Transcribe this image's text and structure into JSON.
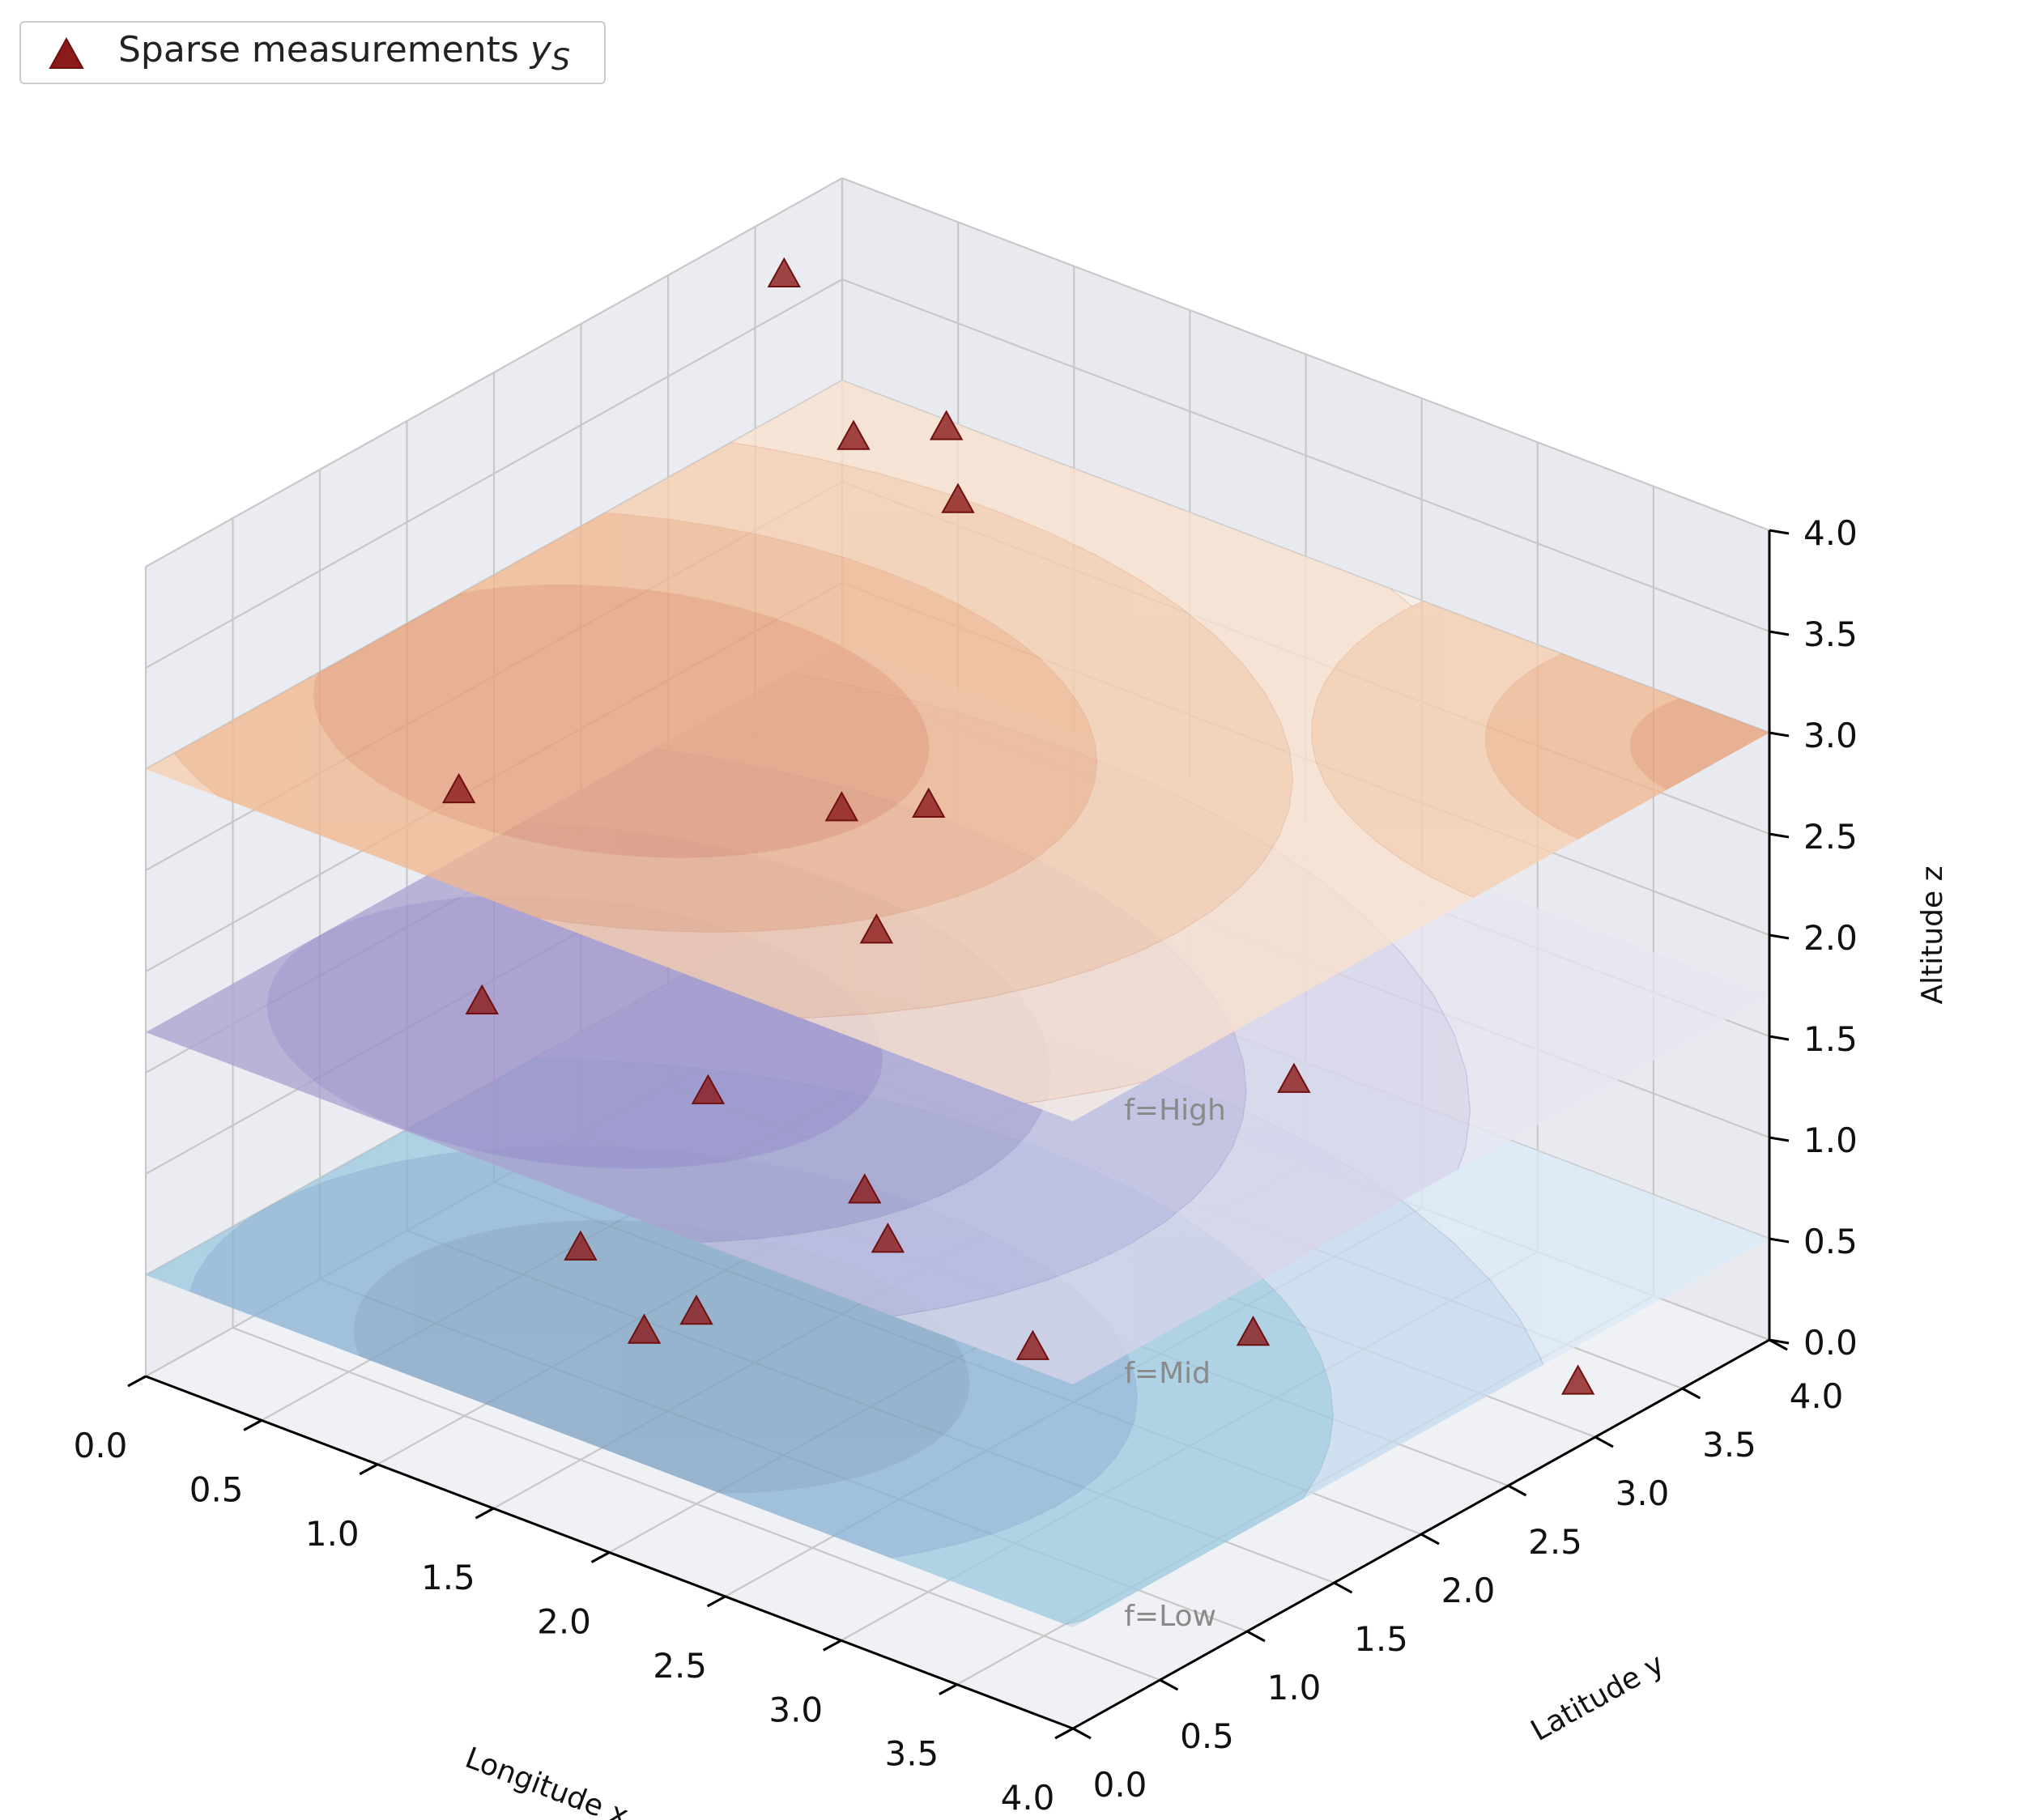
{
  "chart_data": {
    "type": "scatter",
    "projection": "3d",
    "legend": {
      "placement": "top-left",
      "entries": [
        {
          "label": "Sparse measurements",
          "symbol": "y",
          "subscript": "S",
          "marker": "triangle",
          "color": "#8b1a1a"
        }
      ]
    },
    "axes": {
      "x": {
        "label": "Longitude x",
        "range": [
          0,
          4
        ],
        "ticks": [
          "0.0",
          "0.5",
          "1.0",
          "1.5",
          "2.0",
          "2.5",
          "3.0",
          "3.5",
          "4.0"
        ]
      },
      "y": {
        "label": "Latitude y",
        "range": [
          0,
          4
        ],
        "ticks": [
          "0.0",
          "0.5",
          "1.0",
          "1.5",
          "2.0",
          "2.5",
          "3.0",
          "3.5",
          "4.0"
        ]
      },
      "z": {
        "label": "Altitude z",
        "range": [
          0,
          4
        ],
        "ticks": [
          "0.0",
          "0.5",
          "1.0",
          "1.5",
          "2.0",
          "2.5",
          "3.0",
          "3.5",
          "4.0"
        ]
      }
    },
    "grid": true,
    "surfaces": [
      {
        "name": "f=Low",
        "z": 0.5,
        "colormap": "blues",
        "colors": [
          "#dbe9f6",
          "#c6dbef",
          "#9ecae1",
          "#8ab3d4",
          "#7fa3c4"
        ]
      },
      {
        "name": "f=Mid",
        "z": 1.7,
        "colormap": "purples",
        "colors": [
          "#e7e6f1",
          "#d8d5ea",
          "#c2bde0",
          "#aba3d1",
          "#9b8fc9"
        ]
      },
      {
        "name": "f=High",
        "z": 3.0,
        "colormap": "oranges",
        "colors": [
          "#faf0e6",
          "#f9e2cf",
          "#f6cfaf",
          "#f1b890",
          "#e8a07a"
        ]
      }
    ],
    "points": [
      {
        "x": 0.2,
        "y": 3.4,
        "z": 3.9
      },
      {
        "x": 0.8,
        "y": 3.0,
        "z": 3.55
      },
      {
        "x": 0.9,
        "y": 3.4,
        "z": 3.45
      },
      {
        "x": 0.9,
        "y": 0.6,
        "z": 3.0
      },
      {
        "x": 0.8,
        "y": 3.6,
        "z": 2.95
      },
      {
        "x": 1.5,
        "y": 2.0,
        "z": 2.5
      },
      {
        "x": 1.8,
        "y": 2.1,
        "z": 2.6
      },
      {
        "x": 1.0,
        "y": 0.6,
        "z": 2.0
      },
      {
        "x": 1.5,
        "y": 2.2,
        "z": 1.8
      },
      {
        "x": 1.9,
        "y": 0.7,
        "z": 1.9
      },
      {
        "x": 2.7,
        "y": 3.0,
        "z": 1.2
      },
      {
        "x": 2.2,
        "y": 1.2,
        "z": 1.3
      },
      {
        "x": 2.3,
        "y": 1.2,
        "z": 1.1
      },
      {
        "x": 2.0,
        "y": 0.2,
        "z": 1.0
      },
      {
        "x": 2.0,
        "y": 0.5,
        "z": 0.95
      },
      {
        "x": 1.5,
        "y": 0.5,
        "z": 1.05
      },
      {
        "x": 2.7,
        "y": 1.5,
        "z": 0.6
      },
      {
        "x": 3.2,
        "y": 2.1,
        "z": 0.6
      },
      {
        "x": 3.7,
        "y": 3.3,
        "z": 0.0
      }
    ],
    "surface_labels": [
      "f=Low",
      "f=Mid",
      "f=High"
    ]
  }
}
